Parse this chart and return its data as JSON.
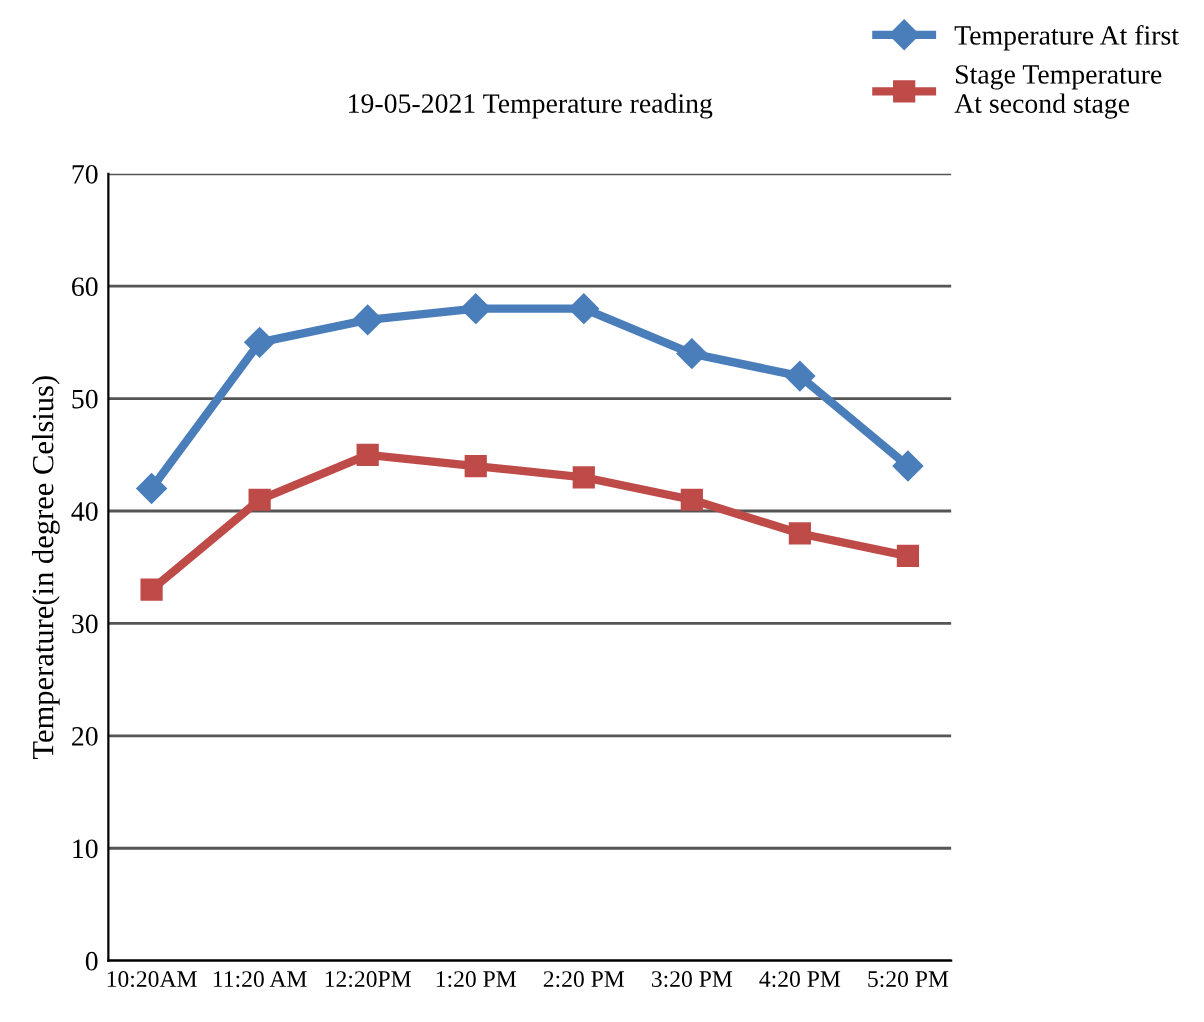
{
  "chart_data": {
    "type": "line",
    "title": "19-05-2021 Temperature reading",
    "ylabel": "Temperature(in degree Celsius)",
    "categories": [
      "10:20AM",
      "11:20 AM",
      "12:20PM",
      "1:20 PM",
      "2:20 PM",
      "3:20 PM",
      "4:20 PM",
      "5:20 PM"
    ],
    "series": [
      {
        "name": "Temperature At first",
        "color": "#4a7ebb",
        "marker": "diamond",
        "values": [
          42,
          55,
          57,
          58,
          58,
          54,
          52,
          44
        ]
      },
      {
        "name": "Stage Temperature\nAt second stage",
        "color": "#be4b48",
        "marker": "square",
        "values": [
          33,
          41,
          45,
          44,
          43,
          41,
          38,
          36
        ]
      }
    ],
    "ylim": [
      0,
      70
    ],
    "yticks": [
      0,
      10,
      20,
      30,
      40,
      50,
      60,
      70
    ],
    "grid": "y",
    "legend": "top right",
    "line_style": "solid"
  }
}
